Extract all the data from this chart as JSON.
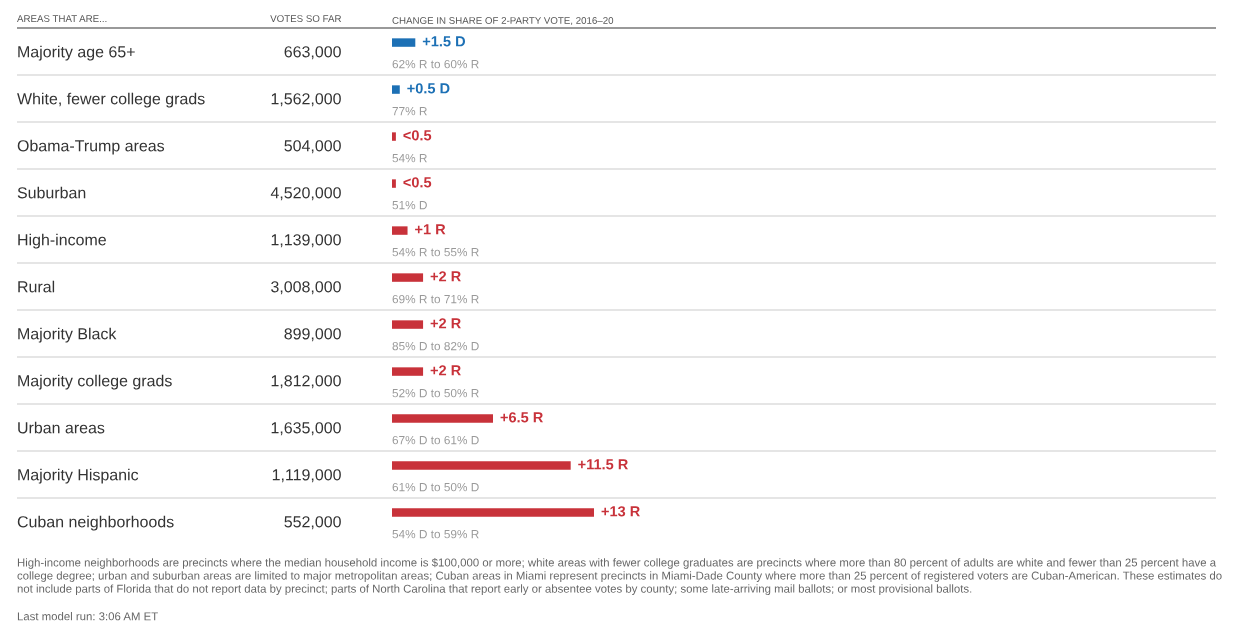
{
  "chart_data": {
    "type": "bar",
    "orientation": "horizontal",
    "ylabel": "AREAS THAT ARE...",
    "xlabel": "CHANGE IN SHARE OF 2-PARTY VOTE, 2016–20",
    "categories": [
      "Majority age 65+",
      "White, fewer college grads",
      "Obama-Trump areas",
      "Suburban",
      "High-income",
      "Rural",
      "Majority Black",
      "Majority college grads",
      "Urban areas",
      "Majority Hispanic",
      "Cuban neighborhoods"
    ],
    "values": [
      1.5,
      0.5,
      0.25,
      0.25,
      1,
      2,
      2,
      2,
      6.5,
      11.5,
      13
    ],
    "colors": [
      "#1c70b5",
      "#1c70b5",
      "#c8323a",
      "#c8323a",
      "#c8323a",
      "#c8323a",
      "#c8323a",
      "#c8323a",
      "#c8323a",
      "#c8323a",
      "#c8323a"
    ],
    "value_labels": [
      "+1.5 D",
      "+0.5 D",
      "<0.5",
      "<0.5",
      "+1 R",
      "+2 R",
      "+2 R",
      "+2 R",
      "+6.5 R",
      "+11.5 R",
      "+13 R"
    ],
    "tick_labels": "y",
    "annotations": [
      "VOTES SO FAR",
      "663,000",
      "1,562,000",
      "504,000",
      "4,520,000",
      "1,139,000",
      "3,008,000",
      "899,000",
      "1,812,000",
      "1,635,000",
      "1,119,000",
      "552,000",
      "62% R to 60% R",
      "77% R",
      "54% R",
      "51% D",
      "54% R to 55% R",
      "69% R to 71% R",
      "85% D to 82% D",
      "52% D to 50% R",
      "67% D to 61% D",
      "61% D to 50% D",
      "54% D to 59% R",
      "High-income neighborhoods are precincts where the median household income is $100,000 or more; white areas with fewer college graduates are precincts where more than 80 percent of adults are white and fewer than 25 percent have a college degree; urban and suburban areas are limited to major metropolitan areas; Cuban areas in Miami represent precincts in Miami-Dade County where more than 25 percent of registered voters are Cuban-American. These estimates do not include parts of Florida that do not report data by precinct; parts of North Carolina that report early or absentee votes by county; some late-arriving mail ballots; or most provisional ballots.",
      "Last model run: 3:06 AM ET"
    ]
  }
}
